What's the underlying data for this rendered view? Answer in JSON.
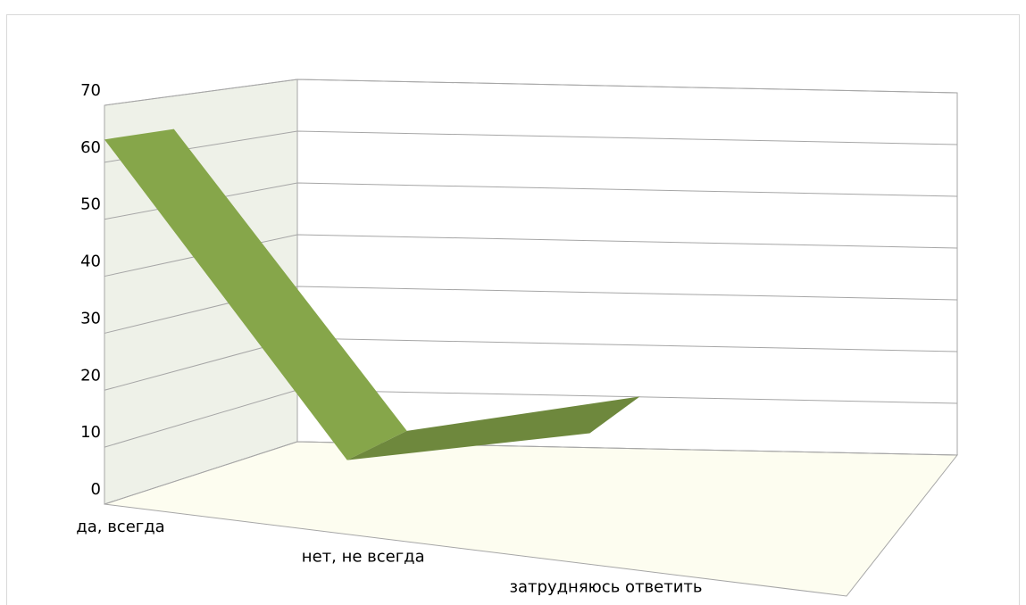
{
  "chart_data": {
    "type": "line3d",
    "categories": [
      "да, всегда",
      "нет, не всегда",
      "затрудняюсь ответить"
    ],
    "values": [
      64,
      13,
      23
    ],
    "color": "#86a64a",
    "ylim": [
      0,
      70
    ],
    "yticks": [
      0,
      10,
      20,
      30,
      40,
      50,
      60,
      70
    ],
    "grid": true
  }
}
